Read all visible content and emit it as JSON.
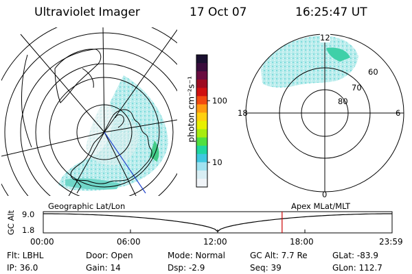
{
  "header": {
    "instrument": "Ultraviolet Imager",
    "date": "17 Oct 07",
    "time": "16:25:47 UT"
  },
  "colorbar": {
    "unit_label": "photon cm⁻²s⁻¹",
    "ticks": [
      "100",
      "10"
    ],
    "colors": [
      "#1a1030",
      "#3a0c3c",
      "#6a0c40",
      "#9e0a20",
      "#d01010",
      "#f24a10",
      "#ff9a10",
      "#ffd010",
      "#e8f000",
      "#a8ec10",
      "#50e040",
      "#20d6a0",
      "#40c8e0",
      "#a0e2f0",
      "#d8eef4",
      "#f0f4f8"
    ]
  },
  "right_map": {
    "mlt_labels": {
      "top": "12",
      "left": "18",
      "right": "6",
      "bottom": "0"
    },
    "lat_labels": [
      "60",
      "70",
      "80"
    ]
  },
  "timeline": {
    "left_label": "Geographic Lat/Lon",
    "right_label": "Apex MLat/MLT",
    "axis_title": "GC Alt",
    "y_ticks": [
      "9.0",
      "1.8"
    ],
    "x_ticks": [
      "00:00",
      "06:00",
      "12:00",
      "18:00",
      "23:59"
    ],
    "current_time_fraction": 0.6846,
    "marker_color": "#cc0000"
  },
  "info": {
    "filter": "Flt: LBHL",
    "ip": "IP: 36.0",
    "door": "Door: Open",
    "gain": "Gain: 14",
    "mode": "Mode: Normal",
    "dsp": "Dsp:   -2.9",
    "gcalt": "GC Alt: 7.7 Re",
    "seq": "Seq: 39",
    "glat": "GLat: -83.9",
    "glon": "GLon: 112.7"
  }
}
